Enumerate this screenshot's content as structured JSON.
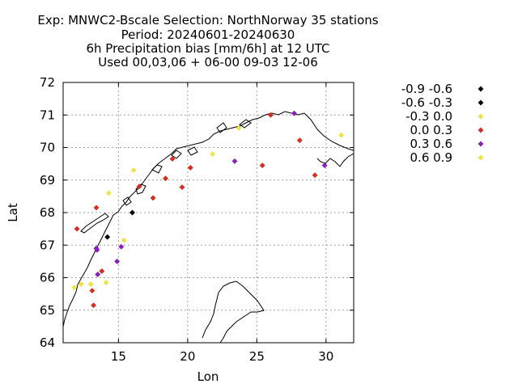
{
  "chart_data": {
    "type": "scatter",
    "title_lines": [
      "Exp: MNWC2-Bscale   Selection: NorthNorway     35 stations",
      "Period: 20240601-20240630",
      "6h Precipitation bias [mm/6h] at  12 UTC",
      "Used 00,03,06 + 06-00 09-03 12-06"
    ],
    "xlabel": "Lon",
    "ylabel": "Lat",
    "xlim": [
      11,
      32
    ],
    "ylim": [
      64,
      72
    ],
    "xticks": [
      15,
      20,
      25,
      30
    ],
    "yticks": [
      64,
      65,
      66,
      67,
      68,
      69,
      70,
      71,
      72
    ],
    "grid": true,
    "legend_position": "right",
    "classes": [
      {
        "label": "-0.9 -0.6",
        "color": "#000000"
      },
      {
        "label": "-0.6 -0.3",
        "color": "#000000"
      },
      {
        "label": "-0.3 0.0",
        "color": "#f0e442"
      },
      {
        "label": "0.0 0.3",
        "color": "#d62d20"
      },
      {
        "label": "0.3 0.6",
        "color": "#8a1fbf"
      },
      {
        "label": "0.6 0.9",
        "color": "#f0e442"
      }
    ],
    "points": [
      {
        "lon": 11.8,
        "lat": 65.7,
        "class": 2
      },
      {
        "lon": 12.3,
        "lat": 65.8,
        "class": 2
      },
      {
        "lon": 13.0,
        "lat": 65.8,
        "class": 2
      },
      {
        "lon": 13.1,
        "lat": 65.6,
        "class": 3
      },
      {
        "lon": 13.2,
        "lat": 65.15,
        "class": 3
      },
      {
        "lon": 13.5,
        "lat": 66.1,
        "class": 4
      },
      {
        "lon": 13.8,
        "lat": 66.2,
        "class": 3
      },
      {
        "lon": 14.1,
        "lat": 65.85,
        "class": 2
      },
      {
        "lon": 13.4,
        "lat": 66.9,
        "class": 4
      },
      {
        "lon": 14.2,
        "lat": 67.25,
        "class": 1
      },
      {
        "lon": 12.0,
        "lat": 67.5,
        "class": 3
      },
      {
        "lon": 13.4,
        "lat": 68.15,
        "class": 3
      },
      {
        "lon": 14.9,
        "lat": 66.5,
        "class": 4
      },
      {
        "lon": 15.2,
        "lat": 66.95,
        "class": 4
      },
      {
        "lon": 15.4,
        "lat": 67.15,
        "class": 2
      },
      {
        "lon": 14.3,
        "lat": 68.6,
        "class": 5
      },
      {
        "lon": 16.0,
        "lat": 68.0,
        "class": 1
      },
      {
        "lon": 16.1,
        "lat": 69.3,
        "class": 5
      },
      {
        "lon": 16.5,
        "lat": 68.8,
        "class": 3
      },
      {
        "lon": 17.5,
        "lat": 68.45,
        "class": 3
      },
      {
        "lon": 18.4,
        "lat": 69.05,
        "class": 3
      },
      {
        "lon": 18.9,
        "lat": 69.65,
        "class": 3
      },
      {
        "lon": 19.6,
        "lat": 68.78,
        "class": 3
      },
      {
        "lon": 20.2,
        "lat": 69.38,
        "class": 3
      },
      {
        "lon": 21.8,
        "lat": 69.8,
        "class": 5
      },
      {
        "lon": 23.4,
        "lat": 69.58,
        "class": 4
      },
      {
        "lon": 23.7,
        "lat": 70.6,
        "class": 5
      },
      {
        "lon": 25.4,
        "lat": 69.45,
        "class": 3
      },
      {
        "lon": 26.0,
        "lat": 71.0,
        "class": 3
      },
      {
        "lon": 27.7,
        "lat": 71.05,
        "class": 4
      },
      {
        "lon": 28.1,
        "lat": 70.22,
        "class": 3
      },
      {
        "lon": 29.2,
        "lat": 69.15,
        "class": 3
      },
      {
        "lon": 29.9,
        "lat": 69.45,
        "class": 4
      },
      {
        "lon": 31.1,
        "lat": 70.38,
        "class": 5
      },
      {
        "lon": 13.45,
        "lat": 66.85,
        "class": 4
      }
    ]
  }
}
